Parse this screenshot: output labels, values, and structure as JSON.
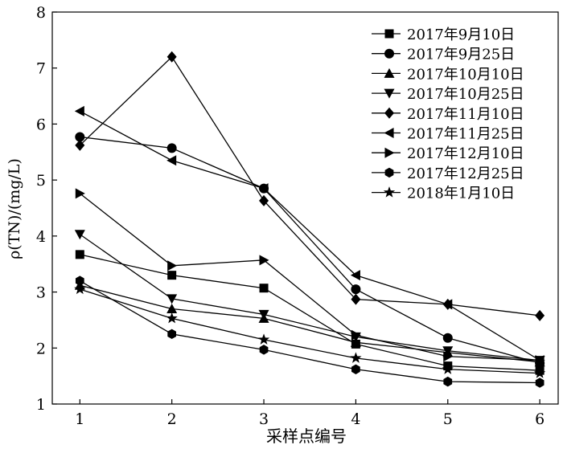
{
  "chart_data": {
    "type": "line",
    "title": "",
    "xlabel": "采样点编号",
    "ylabel": "ρ(TN)/(mg/L)",
    "x": [
      1,
      2,
      3,
      4,
      5,
      6
    ],
    "xlim": [
      0.7,
      6.2
    ],
    "ylim": [
      1,
      8
    ],
    "xticks": [
      1,
      2,
      3,
      4,
      5,
      6
    ],
    "yticks": [
      1,
      2,
      3,
      4,
      5,
      6,
      7,
      8
    ],
    "grid": false,
    "legend_position": "top-right",
    "line_color": "#000000",
    "series": [
      {
        "name": "2017年9月10日",
        "marker": "square",
        "values": [
          3.67,
          3.3,
          3.07,
          2.07,
          1.68,
          1.6
        ]
      },
      {
        "name": "2017年9月25日",
        "marker": "circle",
        "values": [
          5.77,
          5.57,
          4.85,
          3.05,
          2.18,
          1.73
        ]
      },
      {
        "name": "2017年10月10日",
        "marker": "triangle-up",
        "values": [
          3.12,
          2.7,
          2.53,
          2.1,
          1.92,
          1.75
        ]
      },
      {
        "name": "2017年10月25日",
        "marker": "triangle-down",
        "values": [
          4.03,
          2.88,
          2.6,
          2.2,
          1.95,
          1.78
        ]
      },
      {
        "name": "2017年11月10日",
        "marker": "diamond",
        "values": [
          5.62,
          7.2,
          4.63,
          2.87,
          2.78,
          2.58
        ]
      },
      {
        "name": "2017年11月25日",
        "marker": "triangle-left",
        "values": [
          6.23,
          5.35,
          4.85,
          3.3,
          2.78,
          1.78
        ]
      },
      {
        "name": "2017年12月10日",
        "marker": "triangle-right",
        "values": [
          4.76,
          3.47,
          3.57,
          2.23,
          1.85,
          1.78
        ]
      },
      {
        "name": "2017年12月25日",
        "marker": "hexagon",
        "values": [
          3.2,
          2.25,
          1.97,
          1.62,
          1.4,
          1.38
        ]
      },
      {
        "name": "2018年1月10日",
        "marker": "star",
        "values": [
          3.05,
          2.53,
          2.15,
          1.82,
          1.62,
          1.55
        ]
      }
    ]
  }
}
